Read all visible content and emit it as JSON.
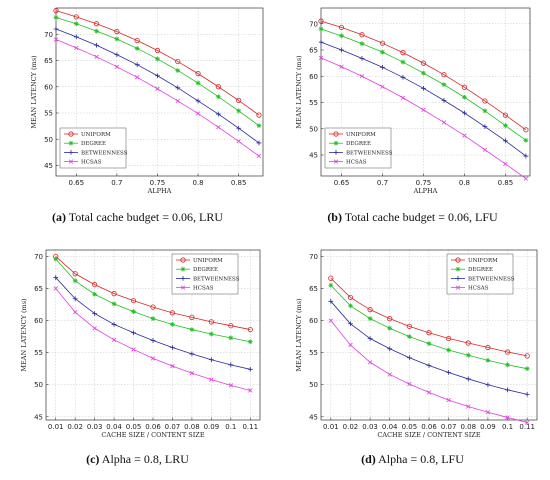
{
  "colors": {
    "uniform": "#d62728",
    "degree": "#22c022",
    "betweenness": "#2a2a9a",
    "hcsas": "#e040e0"
  },
  "chart_data": [
    {
      "type": "line",
      "letter": "(a)",
      "caption": "Total cache budget = 0.06, LRU",
      "xlabel": "ALPHA",
      "ylabel": "MEAN LATENCY (ms)",
      "xlim": [
        0.625,
        0.88
      ],
      "ylim": [
        43,
        75
      ],
      "xticks": [
        0.65,
        0.7,
        0.75,
        0.8,
        0.85
      ],
      "xtick_labels": [
        "0.65",
        "0.7",
        "0.75",
        "0.8",
        "0.85"
      ],
      "yticks": [
        45,
        50,
        55,
        60,
        65,
        70
      ],
      "grid": true,
      "legend": "bottom-left",
      "x": [
        0.625,
        0.65,
        0.675,
        0.7,
        0.725,
        0.75,
        0.775,
        0.8,
        0.825,
        0.85,
        0.875
      ],
      "series": [
        {
          "name": "UNIFORM",
          "values": [
            74.5,
            73.3,
            72.0,
            70.5,
            68.8,
            66.9,
            64.8,
            62.5,
            60.0,
            57.4,
            54.6
          ]
        },
        {
          "name": "DEGREE",
          "values": [
            73.2,
            72.0,
            70.6,
            69.1,
            67.3,
            65.3,
            63.1,
            60.7,
            58.1,
            55.4,
            52.6
          ]
        },
        {
          "name": "BETWEENNESS",
          "values": [
            71.0,
            69.5,
            67.9,
            66.1,
            64.2,
            62.1,
            59.8,
            57.3,
            54.8,
            52.1,
            49.3
          ]
        },
        {
          "name": "HCSAS",
          "values": [
            69.0,
            67.4,
            65.7,
            63.8,
            61.8,
            59.6,
            57.3,
            54.9,
            52.3,
            49.6,
            46.8
          ]
        }
      ]
    },
    {
      "type": "line",
      "letter": "(b)",
      "caption": "Total cache budget = 0.06, LFU",
      "xlabel": "ALPHA",
      "ylabel": "MEAN LATENCY (ms)",
      "xlim": [
        0.625,
        0.88
      ],
      "ylim": [
        41,
        73
      ],
      "xticks": [
        0.65,
        0.7,
        0.75,
        0.8,
        0.85
      ],
      "xtick_labels": [
        "0.65",
        "0.7",
        "0.75",
        "0.8",
        "0.85"
      ],
      "yticks": [
        45,
        50,
        55,
        60,
        65,
        70
      ],
      "grid": true,
      "legend": "bottom-left",
      "x": [
        0.625,
        0.65,
        0.675,
        0.7,
        0.725,
        0.75,
        0.775,
        0.8,
        0.825,
        0.85,
        0.875
      ],
      "series": [
        {
          "name": "UNIFORM",
          "values": [
            70.5,
            69.3,
            67.9,
            66.3,
            64.5,
            62.5,
            60.3,
            57.9,
            55.3,
            52.6,
            49.8
          ]
        },
        {
          "name": "DEGREE",
          "values": [
            69.0,
            67.7,
            66.2,
            64.6,
            62.7,
            60.6,
            58.4,
            56.0,
            53.4,
            50.6,
            47.8
          ]
        },
        {
          "name": "BETWEENNESS",
          "values": [
            66.5,
            65.0,
            63.4,
            61.7,
            59.8,
            57.7,
            55.4,
            53.0,
            50.4,
            47.7,
            44.8
          ]
        },
        {
          "name": "HCSAS",
          "values": [
            63.5,
            61.8,
            60.0,
            58.0,
            55.9,
            53.6,
            51.2,
            48.7,
            46.0,
            43.3,
            40.5
          ]
        }
      ]
    },
    {
      "type": "line",
      "letter": "(c)",
      "caption": "Alpha = 0.8, LRU",
      "xlabel": "CACHE SIZE / CONTENT SIZE",
      "ylabel": "MEAN LATENCY (ms)",
      "xlim": [
        0.005,
        0.115
      ],
      "ylim": [
        44.5,
        71
      ],
      "xticks": [
        0.01,
        0.02,
        0.03,
        0.04,
        0.05,
        0.06,
        0.07,
        0.08,
        0.09,
        0.1,
        0.11
      ],
      "xtick_labels": [
        "0.01",
        "0.02",
        "0.03",
        "0.04",
        "0.05",
        "0.06",
        "0.07",
        "0.08",
        "0.09",
        "0.1",
        "0.11"
      ],
      "yticks": [
        45,
        50,
        55,
        60,
        65,
        70
      ],
      "grid": true,
      "legend": "top-right",
      "x": [
        0.01,
        0.02,
        0.03,
        0.04,
        0.05,
        0.06,
        0.07,
        0.08,
        0.09,
        0.1,
        0.11
      ],
      "series": [
        {
          "name": "UNIFORM",
          "values": [
            70.0,
            67.3,
            65.6,
            64.2,
            63.1,
            62.1,
            61.2,
            60.5,
            59.8,
            59.2,
            58.6
          ]
        },
        {
          "name": "DEGREE",
          "values": [
            69.6,
            66.2,
            64.1,
            62.6,
            61.4,
            60.3,
            59.4,
            58.6,
            57.9,
            57.3,
            56.7
          ]
        },
        {
          "name": "BETWEENNESS",
          "values": [
            66.7,
            63.4,
            61.1,
            59.4,
            58.1,
            56.9,
            55.8,
            54.8,
            53.9,
            53.1,
            52.4
          ]
        },
        {
          "name": "HCSAS",
          "values": [
            65.0,
            61.3,
            58.8,
            57.0,
            55.5,
            54.1,
            52.9,
            51.8,
            50.8,
            49.9,
            49.1
          ]
        }
      ]
    },
    {
      "type": "line",
      "letter": "(d)",
      "caption": "Alpha = 0.8, LFU",
      "xlabel": "CACHE SIZE / CONTENT SIZE",
      "ylabel": "MEAN LATENCY (ms)",
      "xlim": [
        0.005,
        0.115
      ],
      "ylim": [
        44.5,
        71
      ],
      "xticks": [
        0.01,
        0.02,
        0.03,
        0.04,
        0.05,
        0.06,
        0.07,
        0.08,
        0.09,
        0.1,
        0.11
      ],
      "xtick_labels": [
        "0.01",
        "0.02",
        "0.03",
        "0.04",
        "0.05",
        "0.06",
        "0.07",
        "0.08",
        "0.09",
        "0.1",
        "0.11"
      ],
      "yticks": [
        45,
        50,
        55,
        60,
        65,
        70
      ],
      "grid": true,
      "legend": "top-right",
      "x": [
        0.01,
        0.02,
        0.03,
        0.04,
        0.05,
        0.06,
        0.07,
        0.08,
        0.09,
        0.1,
        0.11
      ],
      "series": [
        {
          "name": "UNIFORM",
          "values": [
            66.6,
            63.6,
            61.7,
            60.3,
            59.1,
            58.1,
            57.2,
            56.5,
            55.8,
            55.1,
            54.5
          ]
        },
        {
          "name": "DEGREE",
          "values": [
            65.5,
            62.3,
            60.3,
            58.8,
            57.5,
            56.4,
            55.4,
            54.6,
            53.8,
            53.1,
            52.5
          ]
        },
        {
          "name": "BETWEENNESS",
          "values": [
            63.0,
            59.5,
            57.2,
            55.6,
            54.2,
            53.0,
            51.9,
            50.9,
            50.0,
            49.2,
            48.5
          ]
        },
        {
          "name": "HCSAS",
          "values": [
            60.0,
            56.2,
            53.5,
            51.6,
            50.1,
            48.8,
            47.6,
            46.6,
            45.7,
            44.9,
            44.1
          ]
        }
      ]
    }
  ]
}
